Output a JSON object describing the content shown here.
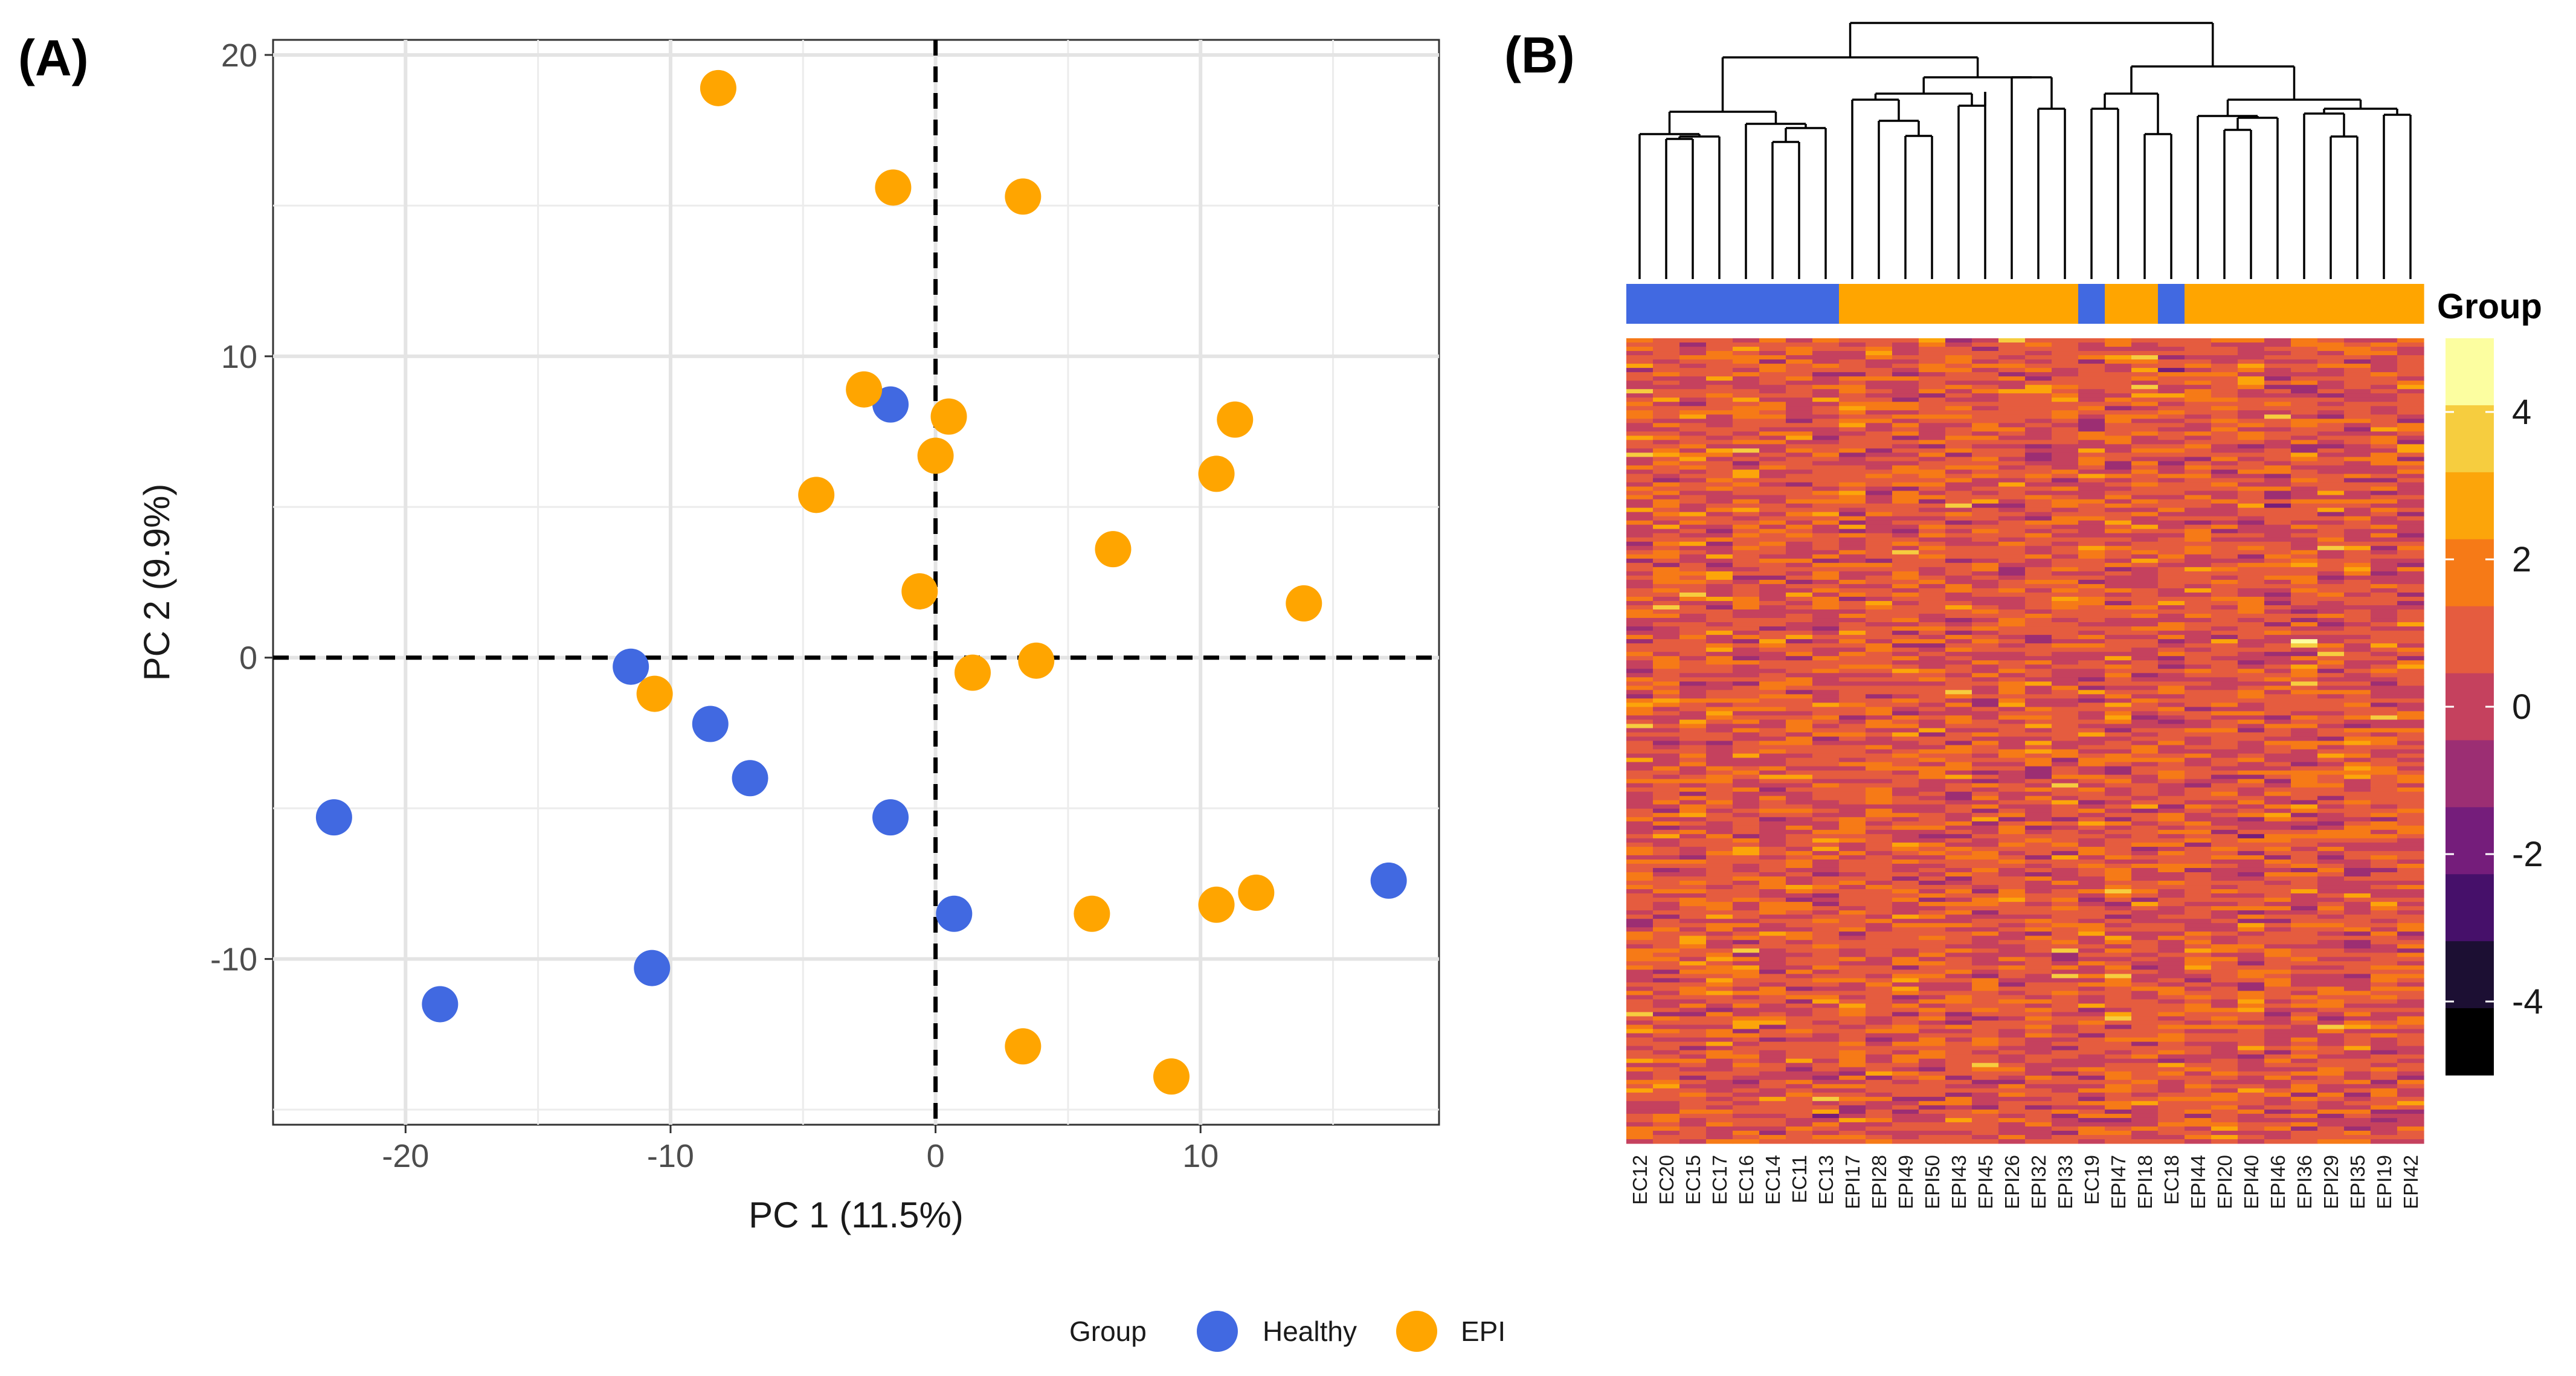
{
  "chart_data": [
    {
      "type": "scatter",
      "panel_label": "(A)",
      "xlabel": "PC 1 (11.5%)",
      "ylabel": "PC 2 (9.9%)",
      "xlim": [
        -25,
        19
      ],
      "ylim": [
        -15.5,
        20.5
      ],
      "xticks": [
        -20,
        -10,
        0,
        10
      ],
      "yticks": [
        -10,
        0,
        10,
        20
      ],
      "grid": true,
      "reference_lines": {
        "x": 0,
        "y": 0,
        "style": "dashed"
      },
      "colors": {
        "Healthy": "#4169e1",
        "EPI": "#ffa500"
      },
      "series": [
        {
          "name": "Healthy",
          "points": [
            [
              -1.7,
              8.4
            ],
            [
              -11.5,
              -0.3
            ],
            [
              -8.5,
              -2.2
            ],
            [
              -7.0,
              -4.0
            ],
            [
              -22.7,
              -5.3
            ],
            [
              -1.7,
              -5.3
            ],
            [
              -18.7,
              -11.5
            ],
            [
              -10.7,
              -10.3
            ],
            [
              0.7,
              -8.5
            ],
            [
              17.1,
              -7.4
            ]
          ]
        },
        {
          "name": "EPI",
          "points": [
            [
              -8.2,
              18.9
            ],
            [
              -1.6,
              15.6
            ],
            [
              3.3,
              15.3
            ],
            [
              -2.7,
              8.9
            ],
            [
              0.5,
              8.0
            ],
            [
              0.0,
              6.7
            ],
            [
              -4.5,
              5.4
            ],
            [
              11.3,
              7.9
            ],
            [
              10.6,
              6.1
            ],
            [
              6.7,
              3.6
            ],
            [
              -0.6,
              2.2
            ],
            [
              13.9,
              1.8
            ],
            [
              3.8,
              -0.1
            ],
            [
              1.4,
              -0.5
            ],
            [
              -10.6,
              -1.2
            ],
            [
              5.9,
              -8.5
            ],
            [
              10.6,
              -8.2
            ],
            [
              12.1,
              -7.8
            ],
            [
              3.3,
              -12.9
            ],
            [
              8.9,
              -13.9
            ]
          ]
        }
      ],
      "legend": {
        "title": "Group",
        "position": "bottom-center",
        "entries": [
          "Healthy",
          "EPI"
        ]
      }
    },
    {
      "type": "heatmap",
      "panel_label": "(B)",
      "columns": [
        "EC12",
        "EC20",
        "EC15",
        "EC17",
        "EC16",
        "EC14",
        "EC11",
        "EC13",
        "EPI17",
        "EPI28",
        "EPI49",
        "EPI50",
        "EPI43",
        "EPI45",
        "EPI26",
        "EPI32",
        "EPI33",
        "EC19",
        "EPI47",
        "EPI18",
        "EC18",
        "EPI44",
        "EPI20",
        "EPI40",
        "EPI46",
        "EPI36",
        "EPI29",
        "EPI35",
        "EPI19",
        "EPI42"
      ],
      "column_groups": [
        "Healthy",
        "Healthy",
        "Healthy",
        "Healthy",
        "Healthy",
        "Healthy",
        "Healthy",
        "Healthy",
        "EPI",
        "EPI",
        "EPI",
        "EPI",
        "EPI",
        "EPI",
        "EPI",
        "EPI",
        "EPI",
        "Healthy",
        "EPI",
        "EPI",
        "Healthy",
        "EPI",
        "EPI",
        "EPI",
        "EPI",
        "EPI",
        "EPI",
        "EPI",
        "EPI",
        "EPI"
      ],
      "annotation_title": "Group",
      "color_scale": {
        "min": -5,
        "max": 5,
        "ticks": [
          -4,
          -2,
          0,
          2,
          4
        ],
        "colors": [
          "#000000",
          "#1c0f33",
          "#46106a",
          "#751d7b",
          "#9c2e73",
          "#c5415e",
          "#e55c3f",
          "#f67a17",
          "#fca50a",
          "#f6cd3f",
          "#fcfea0"
        ]
      },
      "dendrogram": true
    }
  ],
  "legend": {
    "title": "Group",
    "healthy_label": "Healthy",
    "epi_label": "EPI"
  }
}
